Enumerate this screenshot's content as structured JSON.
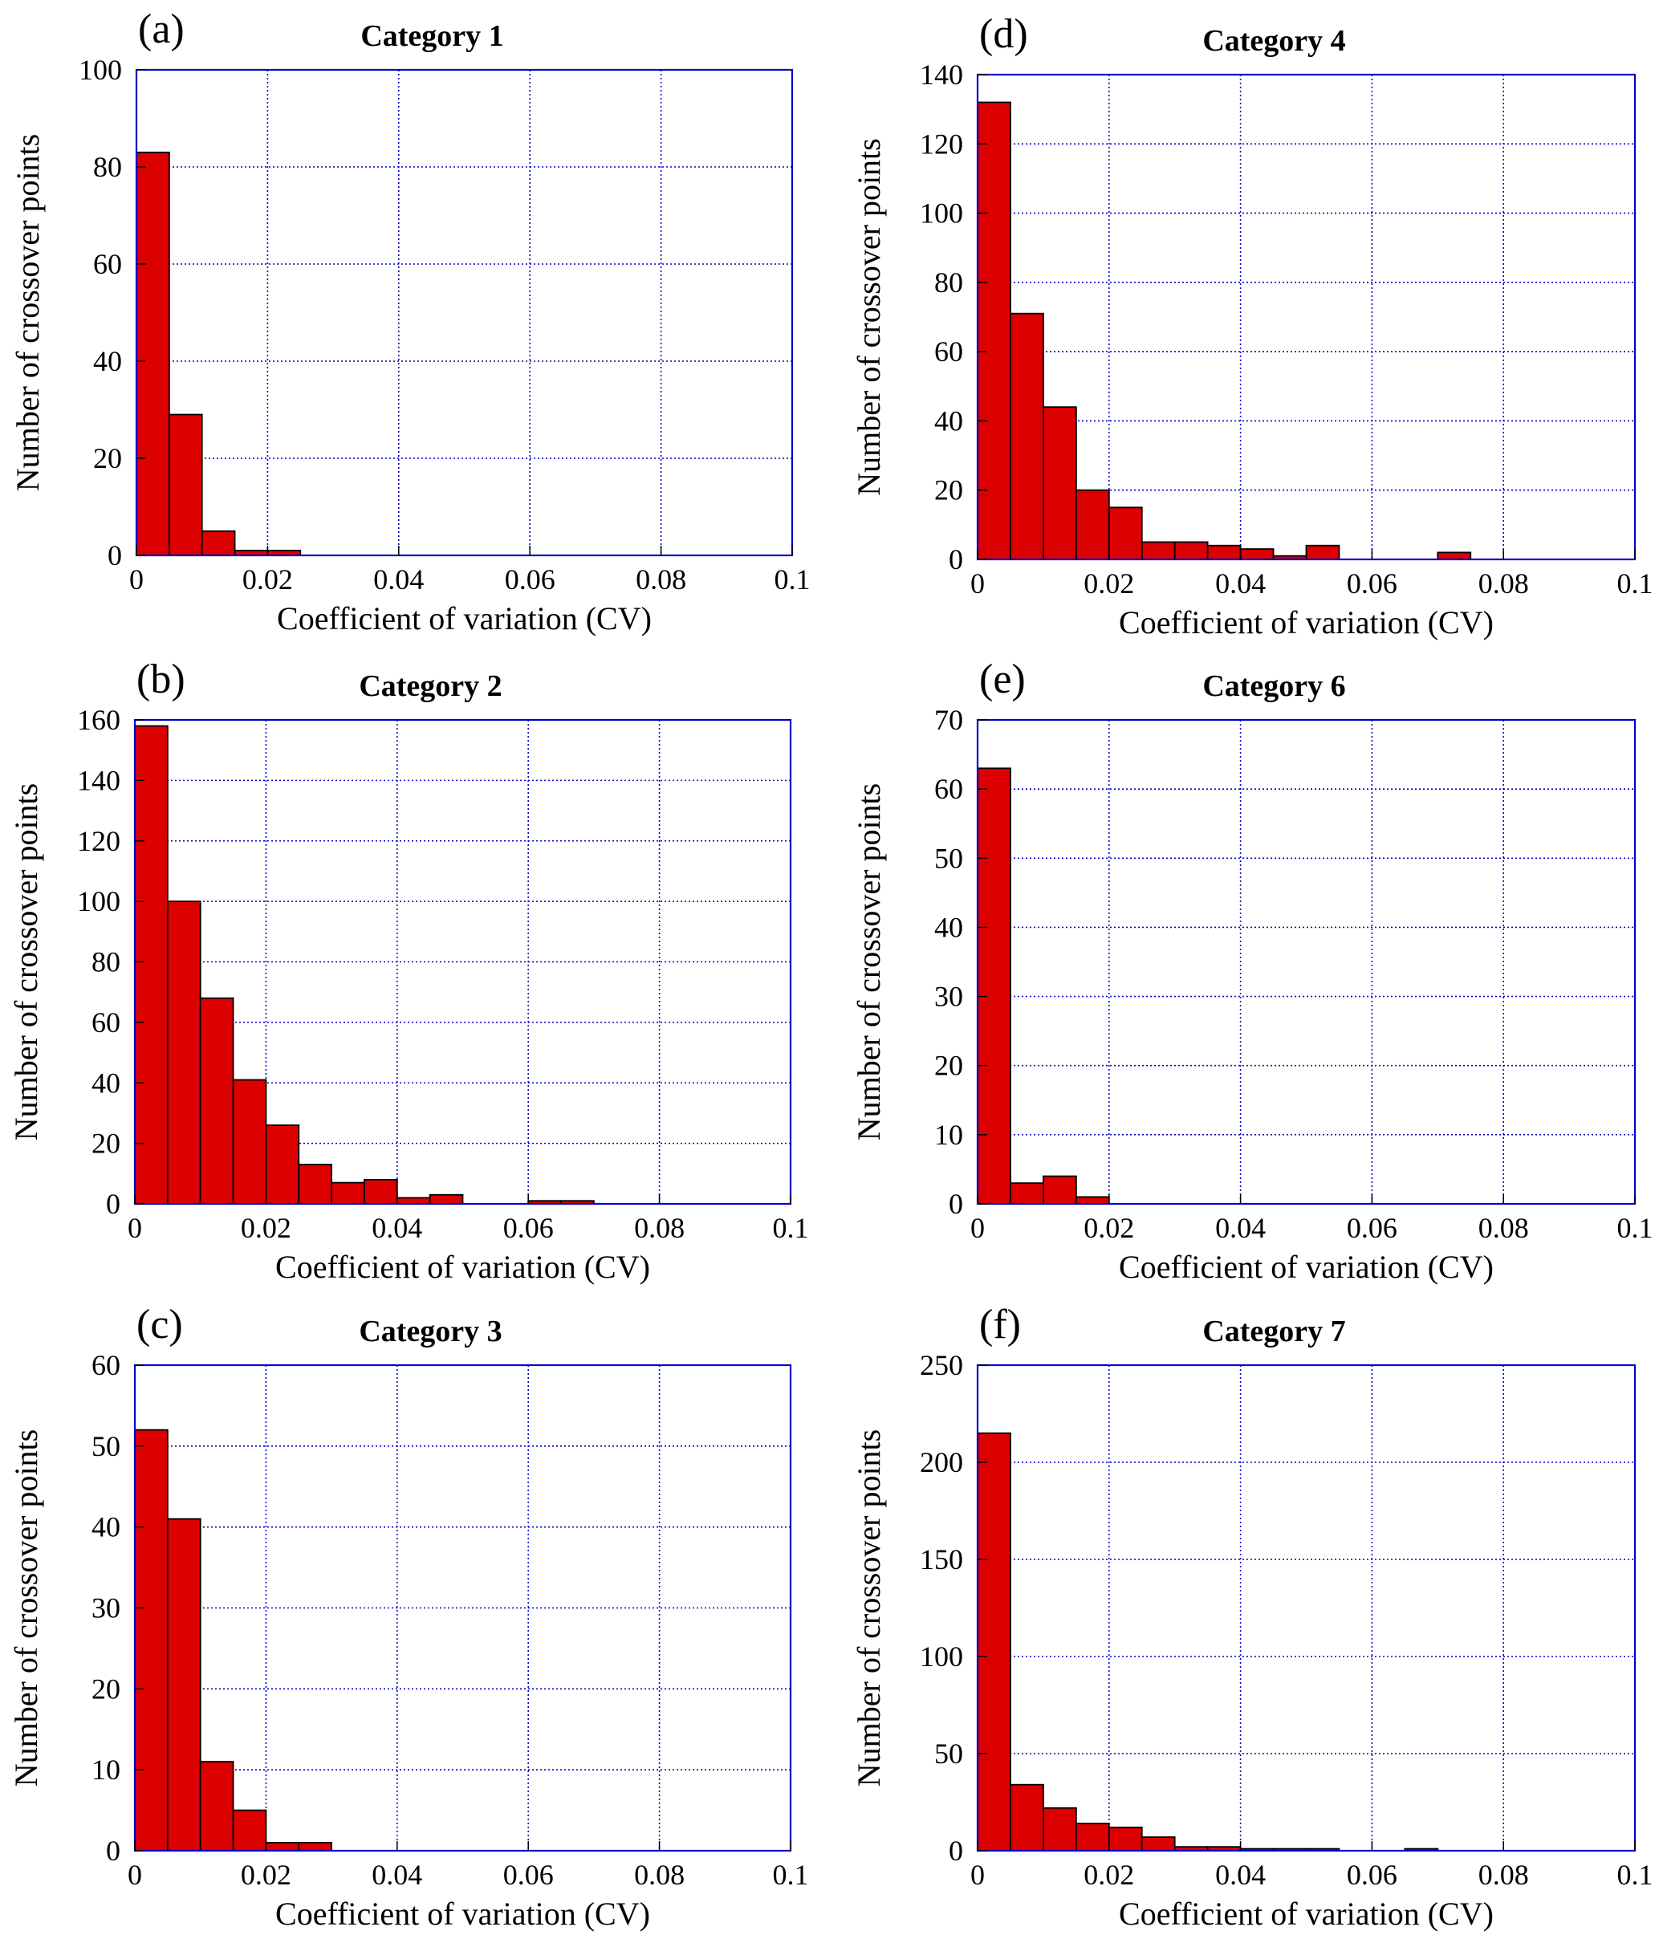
{
  "chart_data": [
    {
      "panel_label": "(a)",
      "title": "Category 1",
      "type": "bar",
      "xlabel": "Coefficient of variation (CV)",
      "ylabel": "Number of crossover points",
      "xlim": [
        0,
        0.1
      ],
      "ylim": [
        0,
        100
      ],
      "xticks": [
        "0",
        "0.02",
        "0.04",
        "0.06",
        "0.08",
        "0.1"
      ],
      "yticks": [
        "0",
        "20",
        "40",
        "60",
        "80",
        "100"
      ],
      "bin_width": 0.005,
      "values": [
        83,
        29,
        5,
        1,
        1
      ],
      "grid": true,
      "bar_color": "#dd0000",
      "frame_color": "#0000cc"
    },
    {
      "panel_label": "(b)",
      "title": "Category 2",
      "type": "bar",
      "xlabel": "Coefficient of variation (CV)",
      "ylabel": "Number of crossover points",
      "xlim": [
        0,
        0.1
      ],
      "ylim": [
        0,
        160
      ],
      "xticks": [
        "0",
        "0.02",
        "0.04",
        "0.06",
        "0.08",
        "0.1"
      ],
      "yticks": [
        "0",
        "20",
        "40",
        "60",
        "80",
        "100",
        "120",
        "140",
        "160"
      ],
      "bin_width": 0.005,
      "values": [
        158,
        100,
        68,
        41,
        26,
        13,
        7,
        8,
        2,
        3,
        0,
        0,
        1,
        1
      ],
      "grid": true,
      "bar_color": "#dd0000",
      "frame_color": "#0000cc"
    },
    {
      "panel_label": "(c)",
      "title": "Category 3",
      "type": "bar",
      "xlabel": "Coefficient of variation (CV)",
      "ylabel": "Number of crossover points",
      "xlim": [
        0,
        0.1
      ],
      "ylim": [
        0,
        60
      ],
      "xticks": [
        "0",
        "0.02",
        "0.04",
        "0.06",
        "0.08",
        "0.1"
      ],
      "yticks": [
        "0",
        "10",
        "20",
        "30",
        "40",
        "50",
        "60"
      ],
      "bin_width": 0.005,
      "values": [
        52,
        41,
        11,
        5,
        1,
        1
      ],
      "grid": true,
      "bar_color": "#dd0000",
      "frame_color": "#0000cc"
    },
    {
      "panel_label": "(d)",
      "title": "Category 4",
      "type": "bar",
      "xlabel": "Coefficient of variation (CV)",
      "ylabel": "Number of crossover points",
      "xlim": [
        0,
        0.1
      ],
      "ylim": [
        0,
        140
      ],
      "xticks": [
        "0",
        "0.02",
        "0.04",
        "0.06",
        "0.08",
        "0.1"
      ],
      "yticks": [
        "0",
        "20",
        "40",
        "60",
        "80",
        "100",
        "120",
        "140"
      ],
      "bin_width": 0.005,
      "values": [
        132,
        71,
        44,
        20,
        15,
        5,
        5,
        4,
        3,
        1,
        4,
        0,
        0,
        0,
        2
      ],
      "grid": true,
      "bar_color": "#dd0000",
      "frame_color": "#0000cc"
    },
    {
      "panel_label": "(e)",
      "title": "Category 6",
      "type": "bar",
      "xlabel": "Coefficient of variation (CV)",
      "ylabel": "Number of crossover points",
      "xlim": [
        0,
        0.1
      ],
      "ylim": [
        0,
        70
      ],
      "xticks": [
        "0",
        "0.02",
        "0.04",
        "0.06",
        "0.08",
        "0.1"
      ],
      "yticks": [
        "0",
        "10",
        "20",
        "30",
        "40",
        "50",
        "60",
        "70"
      ],
      "bin_width": 0.005,
      "values": [
        63,
        3,
        4,
        1
      ],
      "grid": true,
      "bar_color": "#dd0000",
      "frame_color": "#0000cc"
    },
    {
      "panel_label": "(f)",
      "title": "Category 7",
      "type": "bar",
      "xlabel": "Coefficient of variation (CV)",
      "ylabel": "Number of crossover points",
      "xlim": [
        0,
        0.1
      ],
      "ylim": [
        0,
        250
      ],
      "xticks": [
        "0",
        "0.02",
        "0.04",
        "0.06",
        "0.08",
        "0.1"
      ],
      "yticks": [
        "0",
        "50",
        "100",
        "150",
        "200",
        "250"
      ],
      "bin_width": 0.005,
      "values": [
        215,
        34,
        22,
        14,
        12,
        7,
        2,
        2,
        1,
        1,
        1,
        0,
        0,
        1
      ],
      "grid": true,
      "bar_color": "#dd0000",
      "frame_color": "#0000cc"
    }
  ]
}
